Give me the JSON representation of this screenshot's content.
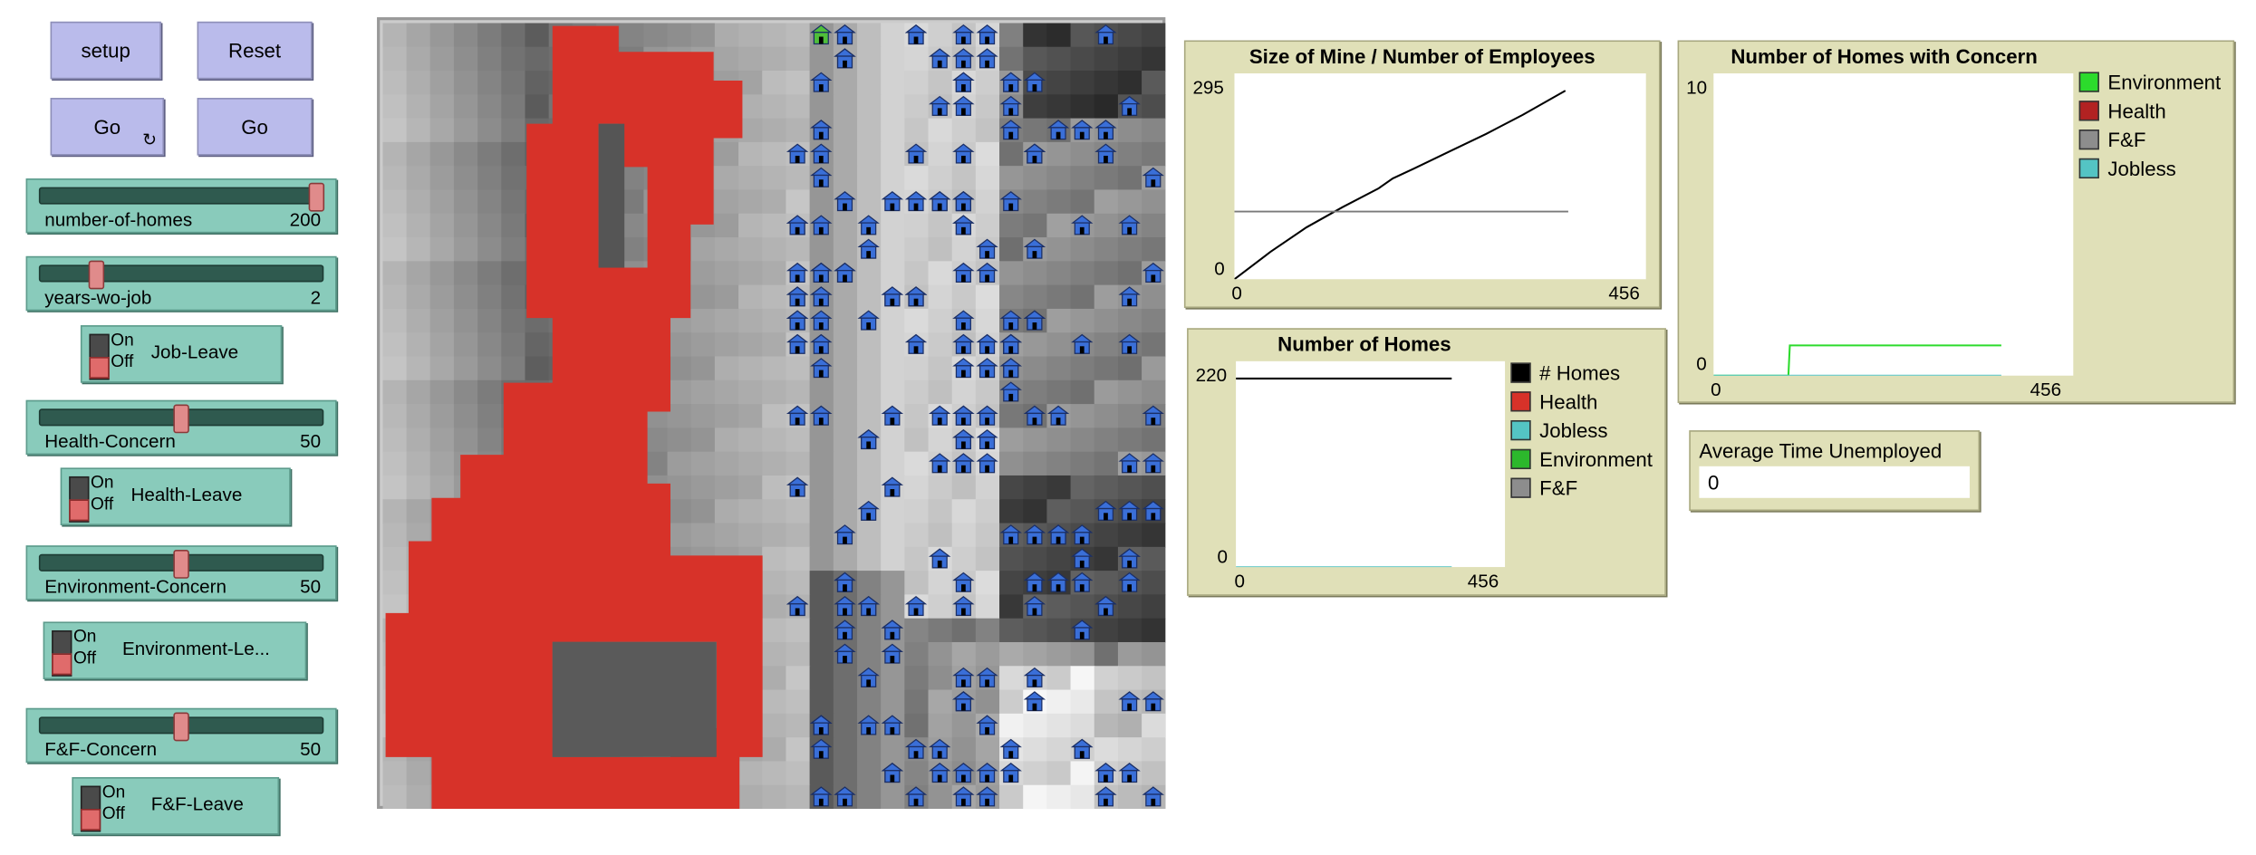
{
  "buttons": {
    "setup": "setup",
    "reset": "Reset",
    "go_forever": "Go",
    "go_once": "Go",
    "forever_glyph": "↻"
  },
  "sliders": [
    {
      "name": "number-of-homes",
      "value": "200",
      "fraction": 0.98
    },
    {
      "name": "years-wo-job",
      "value": "2",
      "fraction": 0.2
    },
    {
      "name": "Health-Concern",
      "value": "50",
      "fraction": 0.5
    },
    {
      "name": "Environment-Concern",
      "value": "50",
      "fraction": 0.5
    },
    {
      "name": "F&F-Concern",
      "value": "50",
      "fraction": 0.5
    }
  ],
  "switches": [
    {
      "name": "Job-Leave",
      "on": "On",
      "off": "Off",
      "state": "off"
    },
    {
      "name": "Health-Leave",
      "on": "On",
      "off": "Off",
      "state": "off"
    },
    {
      "name": "Environment-Le...",
      "on": "On",
      "off": "Off",
      "state": "off"
    },
    {
      "name": "F&F-Leave",
      "on": "On",
      "off": "Off",
      "state": "off"
    }
  ],
  "plots": {
    "mine": {
      "title": "Size of Mine / Number  of Employees",
      "ymax": "295",
      "ymin": "0",
      "xmin": "0",
      "xmax": "456"
    },
    "homes": {
      "title": "Number of Homes",
      "ymax": "220",
      "ymin": "0",
      "xmin": "0",
      "xmax": "456",
      "legend": [
        {
          "label": "# Homes",
          "color": "#000000"
        },
        {
          "label": "Health",
          "color": "#d73229"
        },
        {
          "label": "Jobless",
          "color": "#54c4c4"
        },
        {
          "label": "Environment",
          "color": "#2cb82c"
        },
        {
          "label": "F&F",
          "color": "#8d8d8d"
        }
      ]
    },
    "concern": {
      "title": "Number of Homes with Concern",
      "ymax": "10",
      "ymin": "0",
      "xmin": "0",
      "xmax": "456",
      "legend": [
        {
          "label": "Environment",
          "color": "#2cdb2c"
        },
        {
          "label": "Health",
          "color": "#b22222"
        },
        {
          "label": "F&F",
          "color": "#8d8d8d"
        },
        {
          "label": "Jobless",
          "color": "#54c4c4"
        }
      ]
    }
  },
  "monitor": {
    "title": "Average Time Unemployed",
    "value": "0"
  },
  "colors": {
    "mine": "#d73229",
    "house": "#3a6fd8"
  }
}
